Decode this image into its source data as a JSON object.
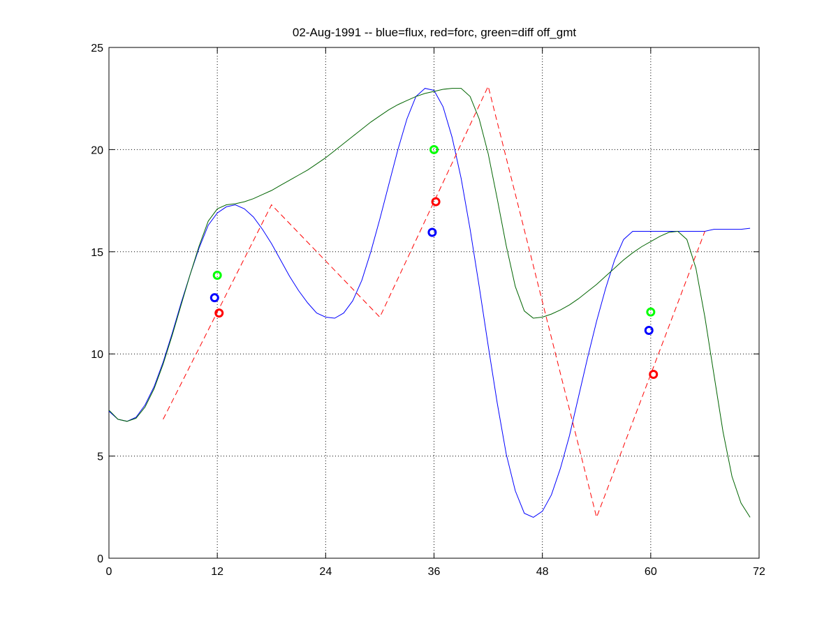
{
  "chart_data": {
    "type": "line",
    "title": "02-Aug-1991 -- blue=flux, red=forc, green=diff off_gmt",
    "xlabel": "",
    "ylabel": "",
    "xlim": [
      0,
      72
    ],
    "ylim": [
      0,
      25
    ],
    "x_ticks": [
      "0",
      "12",
      "24",
      "36",
      "48",
      "60",
      "72"
    ],
    "y_ticks": [
      "0",
      "5",
      "10",
      "15",
      "20",
      "25"
    ],
    "grid": true,
    "legend": "none",
    "series": [
      {
        "color": "#0000ff",
        "style": "solid",
        "x": [
          0,
          1,
          2,
          3,
          4,
          5,
          6,
          7,
          8,
          9,
          10,
          11,
          12,
          13,
          14,
          15,
          16,
          17,
          18,
          19,
          20,
          21,
          22,
          23,
          24,
          25,
          26,
          27,
          28,
          29,
          30,
          31,
          32,
          33,
          34,
          35,
          36,
          37,
          38,
          39,
          40,
          41,
          42,
          43,
          44,
          45,
          46,
          47,
          48,
          49,
          50,
          51,
          52,
          53,
          54,
          55,
          56,
          57,
          58,
          59,
          60,
          61,
          62,
          63,
          64,
          65,
          66,
          67,
          68,
          69,
          70,
          71
        ],
        "y": [
          7.2,
          6.8,
          6.7,
          6.9,
          7.5,
          8.4,
          9.6,
          11.0,
          12.5,
          13.9,
          15.2,
          16.3,
          16.9,
          17.2,
          17.3,
          17.1,
          16.7,
          16.1,
          15.4,
          14.6,
          13.8,
          13.1,
          12.5,
          12.0,
          11.8,
          11.75,
          12.0,
          12.6,
          13.6,
          15.0,
          16.6,
          18.3,
          20.0,
          21.5,
          22.6,
          23.0,
          22.9,
          22.1,
          20.6,
          18.6,
          16.1,
          13.3,
          10.4,
          7.6,
          5.1,
          3.3,
          2.2,
          2.0,
          2.3,
          3.1,
          4.4,
          6.0,
          7.9,
          9.8,
          11.6,
          13.2,
          14.6,
          15.6,
          16.0,
          16.0,
          16.0,
          16.0,
          16.0,
          16.0,
          16.0,
          16.0,
          16.0,
          16.1,
          16.1,
          16.1,
          16.1,
          16.15
        ]
      },
      {
        "color": "#006400",
        "style": "solid",
        "x": [
          0,
          1,
          2,
          3,
          4,
          5,
          6,
          7,
          8,
          9,
          10,
          11,
          12,
          13,
          14,
          15,
          16,
          17,
          18,
          19,
          20,
          21,
          22,
          23,
          24,
          25,
          26,
          27,
          28,
          29,
          30,
          31,
          32,
          33,
          34,
          35,
          36,
          37,
          38,
          39,
          40,
          41,
          42,
          43,
          44,
          45,
          46,
          47,
          48,
          49,
          50,
          51,
          52,
          53,
          54,
          55,
          56,
          57,
          58,
          59,
          60,
          61,
          62,
          63,
          64,
          65,
          66,
          67,
          68,
          69,
          70,
          71
        ],
        "y": [
          7.25,
          6.8,
          6.7,
          6.85,
          7.4,
          8.3,
          9.5,
          10.9,
          12.4,
          13.9,
          15.3,
          16.5,
          17.1,
          17.3,
          17.35,
          17.45,
          17.6,
          17.8,
          18.0,
          18.25,
          18.5,
          18.75,
          19.0,
          19.3,
          19.6,
          19.95,
          20.3,
          20.65,
          21.0,
          21.35,
          21.65,
          21.95,
          22.2,
          22.4,
          22.6,
          22.75,
          22.85,
          22.95,
          23.0,
          23.0,
          22.6,
          21.5,
          19.8,
          17.6,
          15.3,
          13.3,
          12.1,
          11.75,
          11.8,
          11.95,
          12.15,
          12.4,
          12.7,
          13.05,
          13.4,
          13.8,
          14.2,
          14.6,
          14.95,
          15.25,
          15.5,
          15.75,
          15.95,
          16.0,
          15.6,
          14.2,
          11.8,
          9.0,
          6.2,
          4.0,
          2.7,
          2.0
        ]
      },
      {
        "color": "#ff0000",
        "style": "dashed",
        "x": [
          6,
          18,
          30,
          42,
          54,
          66
        ],
        "y": [
          6.8,
          17.3,
          11.8,
          23.1,
          2.0,
          16.0
        ]
      }
    ],
    "markers": [
      {
        "color": "#00ff00",
        "x": 12,
        "y": 13.85
      },
      {
        "color": "#0000ff",
        "x": 11.7,
        "y": 12.75
      },
      {
        "color": "#ff0000",
        "x": 12.2,
        "y": 12.0
      },
      {
        "color": "#00ff00",
        "x": 36,
        "y": 20.0
      },
      {
        "color": "#ff0000",
        "x": 36.2,
        "y": 17.45
      },
      {
        "color": "#0000ff",
        "x": 35.8,
        "y": 15.95
      },
      {
        "color": "#00ff00",
        "x": 60,
        "y": 12.05
      },
      {
        "color": "#0000ff",
        "x": 59.8,
        "y": 11.15
      },
      {
        "color": "#ff0000",
        "x": 60.3,
        "y": 9.0
      }
    ]
  }
}
